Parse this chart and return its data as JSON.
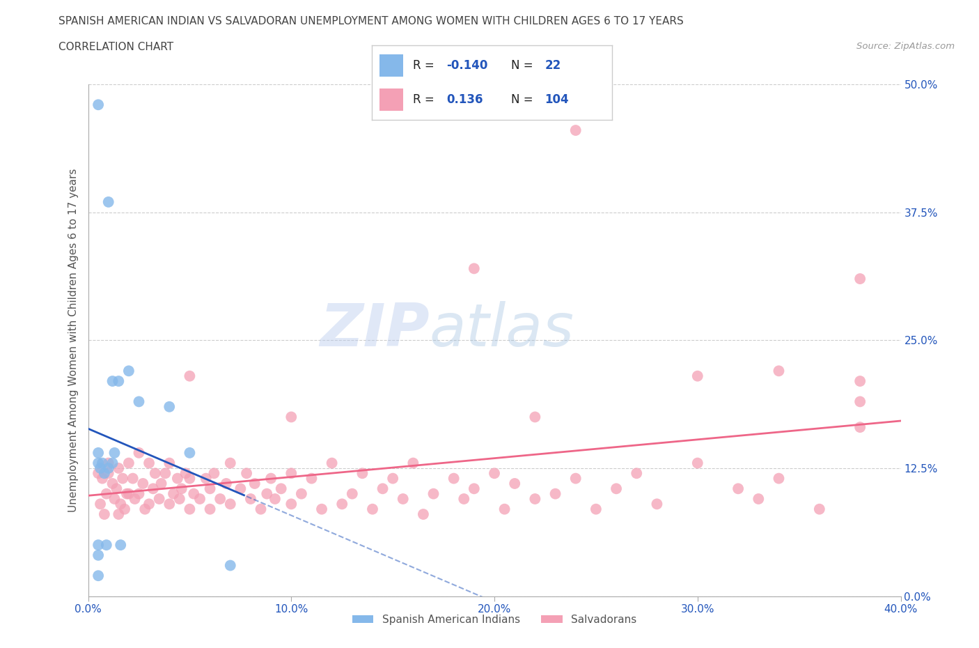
{
  "title": "SPANISH AMERICAN INDIAN VS SALVADORAN UNEMPLOYMENT AMONG WOMEN WITH CHILDREN AGES 6 TO 17 YEARS",
  "subtitle": "CORRELATION CHART",
  "source": "Source: ZipAtlas.com",
  "ylabel": "Unemployment Among Women with Children Ages 6 to 17 years",
  "xlim": [
    0.0,
    0.4
  ],
  "ylim": [
    0.0,
    0.5
  ],
  "xticks": [
    0.0,
    0.1,
    0.2,
    0.3,
    0.4
  ],
  "xticklabels": [
    "0.0%",
    "10.0%",
    "20.0%",
    "30.0%",
    "40.0%"
  ],
  "yticks": [
    0.0,
    0.125,
    0.25,
    0.375,
    0.5
  ],
  "yticklabels": [
    "0.0%",
    "12.5%",
    "25.0%",
    "37.5%",
    "50.0%"
  ],
  "R_blue": -0.14,
  "N_blue": 22,
  "R_pink": 0.136,
  "N_pink": 104,
  "blue_color": "#85B8EA",
  "pink_color": "#F4A0B5",
  "blue_line_color": "#2255BB",
  "pink_line_color": "#EE6688",
  "legend_label_blue": "Spanish American Indians",
  "legend_label_pink": "Salvadorans",
  "watermark_zip": "ZIP",
  "watermark_atlas": "atlas",
  "background_color": "#FFFFFF",
  "grid_color": "#CCCCCC",
  "title_color": "#444444",
  "axis_label_color": "#555555",
  "tick_label_color": "#2255BB",
  "legend_R_color": "#222222",
  "legend_val_color": "#2255BB",
  "blue_points_x": [
    0.005,
    0.005,
    0.005,
    0.005,
    0.005,
    0.005,
    0.006,
    0.007,
    0.008,
    0.009,
    0.01,
    0.01,
    0.012,
    0.012,
    0.013,
    0.015,
    0.016,
    0.02,
    0.025,
    0.04,
    0.05,
    0.07
  ],
  "blue_points_y": [
    0.48,
    0.14,
    0.13,
    0.05,
    0.04,
    0.02,
    0.125,
    0.13,
    0.12,
    0.05,
    0.385,
    0.125,
    0.21,
    0.13,
    0.14,
    0.21,
    0.05,
    0.22,
    0.19,
    0.185,
    0.14,
    0.03
  ],
  "pink_points_x": [
    0.005,
    0.006,
    0.007,
    0.008,
    0.009,
    0.01,
    0.01,
    0.012,
    0.013,
    0.014,
    0.015,
    0.015,
    0.016,
    0.017,
    0.018,
    0.019,
    0.02,
    0.02,
    0.022,
    0.023,
    0.025,
    0.025,
    0.027,
    0.028,
    0.03,
    0.03,
    0.032,
    0.033,
    0.035,
    0.036,
    0.038,
    0.04,
    0.04,
    0.042,
    0.044,
    0.045,
    0.046,
    0.048,
    0.05,
    0.05,
    0.052,
    0.055,
    0.058,
    0.06,
    0.06,
    0.062,
    0.065,
    0.068,
    0.07,
    0.07,
    0.075,
    0.078,
    0.08,
    0.082,
    0.085,
    0.088,
    0.09,
    0.092,
    0.095,
    0.1,
    0.1,
    0.105,
    0.11,
    0.115,
    0.12,
    0.125,
    0.13,
    0.135,
    0.14,
    0.145,
    0.15,
    0.155,
    0.16,
    0.165,
    0.17,
    0.18,
    0.185,
    0.19,
    0.2,
    0.205,
    0.21,
    0.22,
    0.23,
    0.24,
    0.25,
    0.26,
    0.27,
    0.28,
    0.3,
    0.32,
    0.33,
    0.34,
    0.36,
    0.38,
    0.38,
    0.24,
    0.19,
    0.38,
    0.34,
    0.3,
    0.22,
    0.1,
    0.05,
    0.38
  ],
  "pink_points_y": [
    0.12,
    0.09,
    0.115,
    0.08,
    0.1,
    0.13,
    0.12,
    0.11,
    0.095,
    0.105,
    0.125,
    0.08,
    0.09,
    0.115,
    0.085,
    0.1,
    0.13,
    0.1,
    0.115,
    0.095,
    0.14,
    0.1,
    0.11,
    0.085,
    0.13,
    0.09,
    0.105,
    0.12,
    0.095,
    0.11,
    0.12,
    0.13,
    0.09,
    0.1,
    0.115,
    0.095,
    0.105,
    0.12,
    0.085,
    0.115,
    0.1,
    0.095,
    0.115,
    0.105,
    0.085,
    0.12,
    0.095,
    0.11,
    0.13,
    0.09,
    0.105,
    0.12,
    0.095,
    0.11,
    0.085,
    0.1,
    0.115,
    0.095,
    0.105,
    0.12,
    0.09,
    0.1,
    0.115,
    0.085,
    0.13,
    0.09,
    0.1,
    0.12,
    0.085,
    0.105,
    0.115,
    0.095,
    0.13,
    0.08,
    0.1,
    0.115,
    0.095,
    0.105,
    0.12,
    0.085,
    0.11,
    0.095,
    0.1,
    0.115,
    0.085,
    0.105,
    0.12,
    0.09,
    0.13,
    0.105,
    0.095,
    0.115,
    0.085,
    0.19,
    0.21,
    0.455,
    0.32,
    0.31,
    0.22,
    0.215,
    0.175,
    0.175,
    0.215,
    0.165
  ]
}
